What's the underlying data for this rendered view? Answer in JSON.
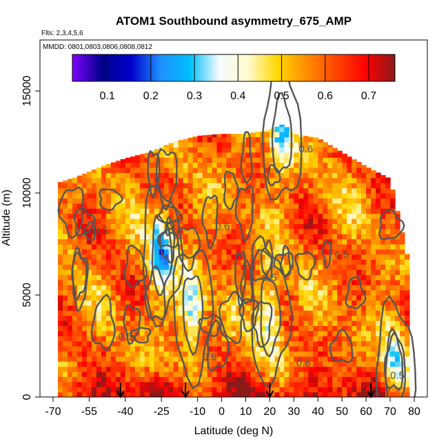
{
  "chart_data": {
    "type": "heatmap",
    "title": "ATOM1 Southbound asymmetry_675_AMP",
    "subtitle_flights": "Flts: 2,3,4,5,6",
    "subtitle_dates": "MMDD: 0801,0803,0806,0808,0812",
    "xlabel": "Latitude (deg N)",
    "ylabel": "Altitude (m)",
    "xlim": [
      -70,
      80
    ],
    "ylim": [
      0,
      17500
    ],
    "x_ticks": [
      -70,
      -55,
      -40,
      -25,
      -10,
      0,
      10,
      20,
      30,
      40,
      50,
      60,
      70,
      80
    ],
    "y_ticks": [
      0,
      5000,
      10000,
      15000
    ],
    "colorbar": {
      "range": [
        0.02,
        0.76
      ],
      "ticks": [
        0.1,
        0.2,
        0.3,
        0.4,
        0.5,
        0.6,
        0.7
      ],
      "colors": [
        "#7f00ff",
        "#00008b",
        "#0000cd",
        "#1e90ff",
        "#00bfff",
        "#f5fbff",
        "#fffacd",
        "#ffd700",
        "#ff8c00",
        "#ff4500",
        "#ff0000",
        "#8b1a1a"
      ]
    },
    "contour_levels": [
      0.3,
      0.4,
      0.5,
      0.6
    ],
    "contour_labels": [
      "0.6",
      "0.5",
      "0.5",
      "0.6",
      "0.5",
      "0.5",
      "0.6",
      "0.6",
      "0.5"
    ],
    "profile_arrows_lat": [
      -42,
      -15,
      20,
      62
    ],
    "coverage_top_m": [
      [
        -68,
        10500
      ],
      [
        -60,
        10800
      ],
      [
        -50,
        11300
      ],
      [
        -40,
        11700
      ],
      [
        -30,
        12000
      ],
      [
        -20,
        12500
      ],
      [
        -10,
        12800
      ],
      [
        0,
        12900
      ],
      [
        10,
        12900
      ],
      [
        20,
        13100
      ],
      [
        26,
        13400
      ],
      [
        30,
        12900
      ],
      [
        40,
        12700
      ],
      [
        50,
        12000
      ],
      [
        60,
        11300
      ],
      [
        70,
        10700
      ],
      [
        78,
        6500
      ]
    ],
    "summary_values": [
      {
        "lat": -25,
        "alt": 7000,
        "value": 0.25
      },
      {
        "lat": -12,
        "alt": 4200,
        "value": 0.32
      },
      {
        "lat": 20,
        "alt": 4000,
        "value": 0.33
      },
      {
        "lat": 72,
        "alt": 1300,
        "value": 0.35
      },
      {
        "lat": 25,
        "alt": 12800,
        "value": 0.3
      },
      {
        "lat": -60,
        "alt": 500,
        "value": 0.7
      },
      {
        "lat": 0,
        "alt": 500,
        "value": 0.7
      },
      {
        "lat": 50,
        "alt": 800,
        "value": 0.68
      }
    ]
  }
}
